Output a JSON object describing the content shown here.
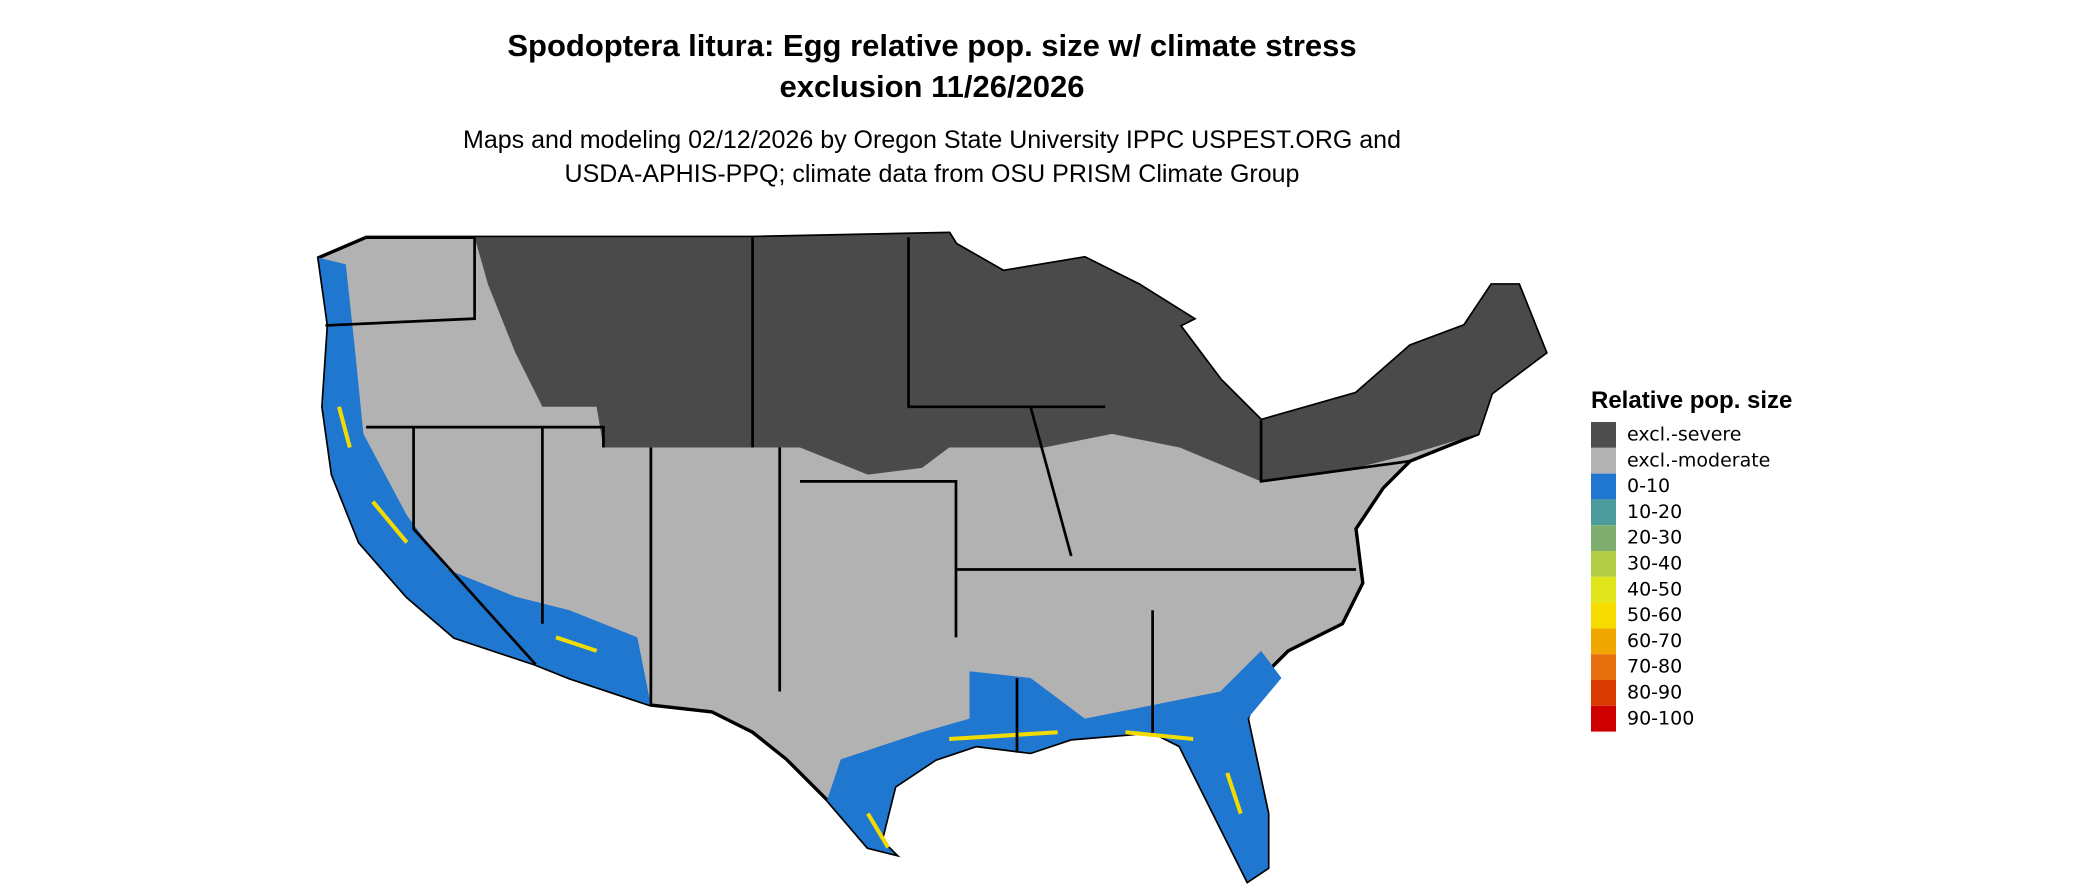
{
  "header": {
    "title": [
      "Spodoptera litura: Egg relative pop. size w/ climate stress",
      "exclusion 11/26/2026"
    ],
    "subtitle": [
      "Maps and modeling 02/12/2026 by Oregon State University IPPC USPEST.ORG and",
      "USDA-APHIS-PPQ; climate data from OSU PRISM Climate Group"
    ]
  },
  "legend": {
    "title": "Relative pop. size",
    "items": [
      {
        "label": "excl.-severe",
        "color": "#4d4d4d"
      },
      {
        "label": "excl.-moderate",
        "color": "#b3b3b3"
      },
      {
        "label": "0-10",
        "color": "#1f77d0"
      },
      {
        "label": "10-20",
        "color": "#4b9a9c"
      },
      {
        "label": "20-30",
        "color": "#7fae70"
      },
      {
        "label": "30-40",
        "color": "#b3cd44"
      },
      {
        "label": "40-50",
        "color": "#e1e61c"
      },
      {
        "label": "50-60",
        "color": "#f7dc00"
      },
      {
        "label": "60-70",
        "color": "#f0a800"
      },
      {
        "label": "70-80",
        "color": "#e56f0c"
      },
      {
        "label": "80-90",
        "color": "#d93a00"
      },
      {
        "label": "90-100",
        "color": "#d00000"
      }
    ]
  }
}
